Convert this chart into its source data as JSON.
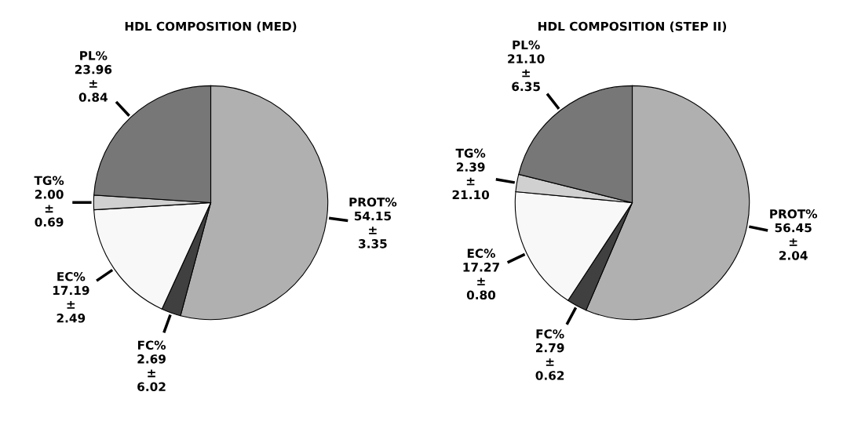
{
  "chart_data": [
    {
      "type": "pie",
      "title": "HDL COMPOSITION (MED)",
      "categories": [
        "PROT%",
        "FC%",
        "EC%",
        "TG%",
        "PL%"
      ],
      "values": [
        54.15,
        2.69,
        17.19,
        2.0,
        23.96
      ],
      "colors": [
        "#b0b0b0",
        "#404040",
        "#f8f8f8",
        "#d0d0d0",
        "#777777"
      ],
      "value_labels": [
        "54.15\n±\n3.35",
        "2.69\n±\n6.02",
        "17.19\n±\n2.49",
        "2.00\n±\n0.69",
        "23.96\n±\n0.84"
      ]
    },
    {
      "type": "pie",
      "title": "HDL COMPOSITION (STEP II)",
      "categories": [
        "PROT%",
        "FC%",
        "EC%",
        "TG%",
        "PL%"
      ],
      "values": [
        56.45,
        2.79,
        17.27,
        2.39,
        21.1
      ],
      "colors": [
        "#b0b0b0",
        "#404040",
        "#f8f8f8",
        "#d0d0d0",
        "#777777"
      ],
      "value_labels": [
        "56.45\n±\n2.04",
        "2.79\n±\n0.62",
        "17.27\n±\n0.80",
        "2.39\n±\n21.10",
        "21.10\n±\n6.35"
      ]
    }
  ]
}
